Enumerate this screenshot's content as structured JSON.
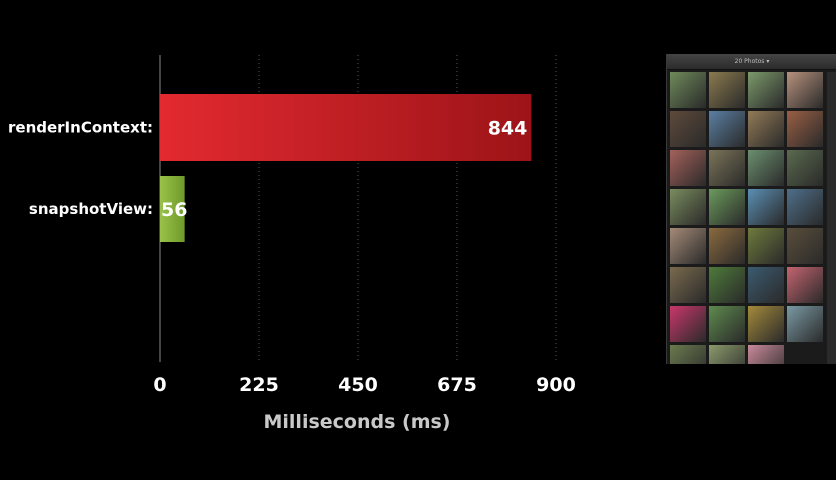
{
  "chart_data": {
    "type": "bar",
    "orientation": "horizontal",
    "categories": [
      "renderInContext:",
      "snapshotView:"
    ],
    "values": [
      844,
      56
    ],
    "value_labels": [
      "844",
      "56"
    ],
    "xlabel": "Milliseconds (ms)",
    "ylabel": "",
    "xlim": [
      0,
      900
    ],
    "x_ticks": [
      "0",
      "225",
      "450",
      "675",
      "900"
    ],
    "grid": "vertical dotted",
    "colors": {
      "renderInContext:": "#d4242b",
      "snapshotView:": "#8bb33a"
    }
  },
  "photo_panel": {
    "header": "20 Photos ▾",
    "thumbnail_colors": [
      "#6f8a5a",
      "#8a7a4e",
      "#7c9a6b",
      "#b7927d",
      "#5e4a3b",
      "#5a7fa3",
      "#927a57",
      "#9a5f44",
      "#a4615a",
      "#7b7458",
      "#6b8f6f",
      "#5a6a4e",
      "#7a8c5e",
      "#6b9a5c",
      "#5a8fb3",
      "#4e6f8a",
      "#a48a78",
      "#8a6a3e",
      "#6e7a3c",
      "#5a4e3b",
      "#7a6a4e",
      "#4e7a3a",
      "#3b5a6f",
      "#c4646f",
      "#c9376a",
      "#5e8a4e",
      "#a48a3b",
      "#7a9aa4",
      "#6a7a4e",
      "#8a9a6b",
      "#c98a9a"
    ]
  }
}
